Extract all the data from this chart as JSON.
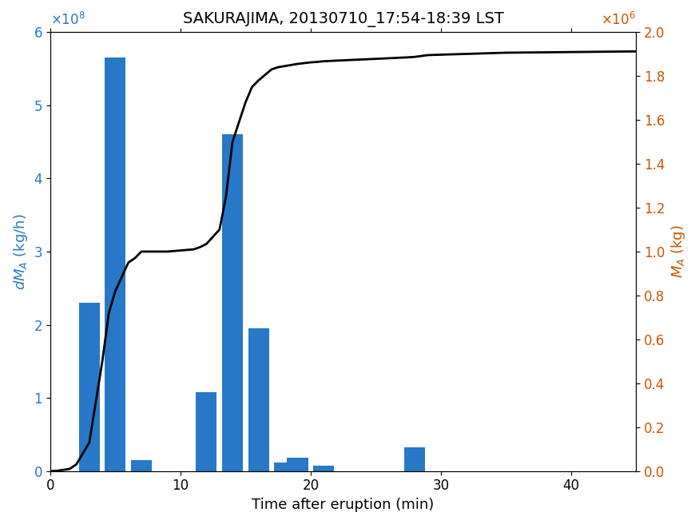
{
  "title": "SAKURAJIMA, 20130710_17:54-18:39 LST",
  "xlabel": "Time after eruption (min)",
  "ylabel_left": "dM_A (kg/h)",
  "ylabel_right": "M_A (kg)",
  "bar_centers": [
    3,
    5,
    7,
    9,
    12,
    14,
    16,
    18,
    19,
    21,
    28
  ],
  "bar_heights": [
    230000000.0,
    565000000.0,
    15000000.0,
    0.0,
    108000000.0,
    460000000.0,
    195000000.0,
    12000000.0,
    18000000.0,
    7000000.0,
    32000000.0
  ],
  "bar_width": 1.6,
  "bar_color": "#2878c8",
  "xlim": [
    0,
    45
  ],
  "ylim_left": [
    0,
    600000000.0
  ],
  "ylim_right": [
    0,
    2000000.0
  ],
  "yticks_left": [
    0,
    100000000.0,
    200000000.0,
    300000000.0,
    400000000.0,
    500000000.0,
    600000000.0
  ],
  "yticks_right": [
    0,
    200000.0,
    400000.0,
    600000.0,
    800000.0,
    1000000.0,
    1200000.0,
    1400000.0,
    1600000.0,
    1800000.0,
    2000000.0
  ],
  "xticks": [
    0,
    10,
    20,
    30,
    40
  ],
  "cumulative_x": [
    0,
    0.5,
    1.5,
    2.0,
    3.0,
    4.0,
    4.5,
    5.0,
    6.0,
    6.5,
    7.0,
    8.0,
    9.0,
    10.0,
    11.0,
    11.5,
    12.0,
    13.0,
    13.5,
    14.0,
    15.0,
    15.5,
    16.0,
    17.0,
    17.5,
    18.0,
    18.5,
    19.0,
    20.0,
    20.5,
    21.0,
    22.0,
    25.0,
    27.5,
    28.0,
    29.0,
    30.0,
    35.0,
    40.0,
    45.0
  ],
  "cumulative_y": [
    0,
    1000.0,
    10000.0,
    30000.0,
    130000.0,
    500000.0,
    720000.0,
    820000.0,
    950000.0,
    970000.0,
    1000000.0,
    1000000.0,
    1000000.0,
    1005000.0,
    1010000.0,
    1020000.0,
    1035000.0,
    1100000.0,
    1250000.0,
    1500000.0,
    1680000.0,
    1750000.0,
    1780000.0,
    1830000.0,
    1840000.0,
    1845000.0,
    1850000.0,
    1855000.0,
    1862000.0,
    1864000.0,
    1867000.0,
    1870000.0,
    1878000.0,
    1885000.0,
    1887000.0,
    1895000.0,
    1897000.0,
    1906000.0,
    1909000.0,
    1912000.0
  ],
  "line_color": "#000000",
  "line_width": 2.0,
  "title_fontsize": 14,
  "label_fontsize": 13,
  "tick_fontsize": 12,
  "left_axis_color": "#2977c8",
  "right_axis_color": "#c85500",
  "background_color": "#ffffff"
}
